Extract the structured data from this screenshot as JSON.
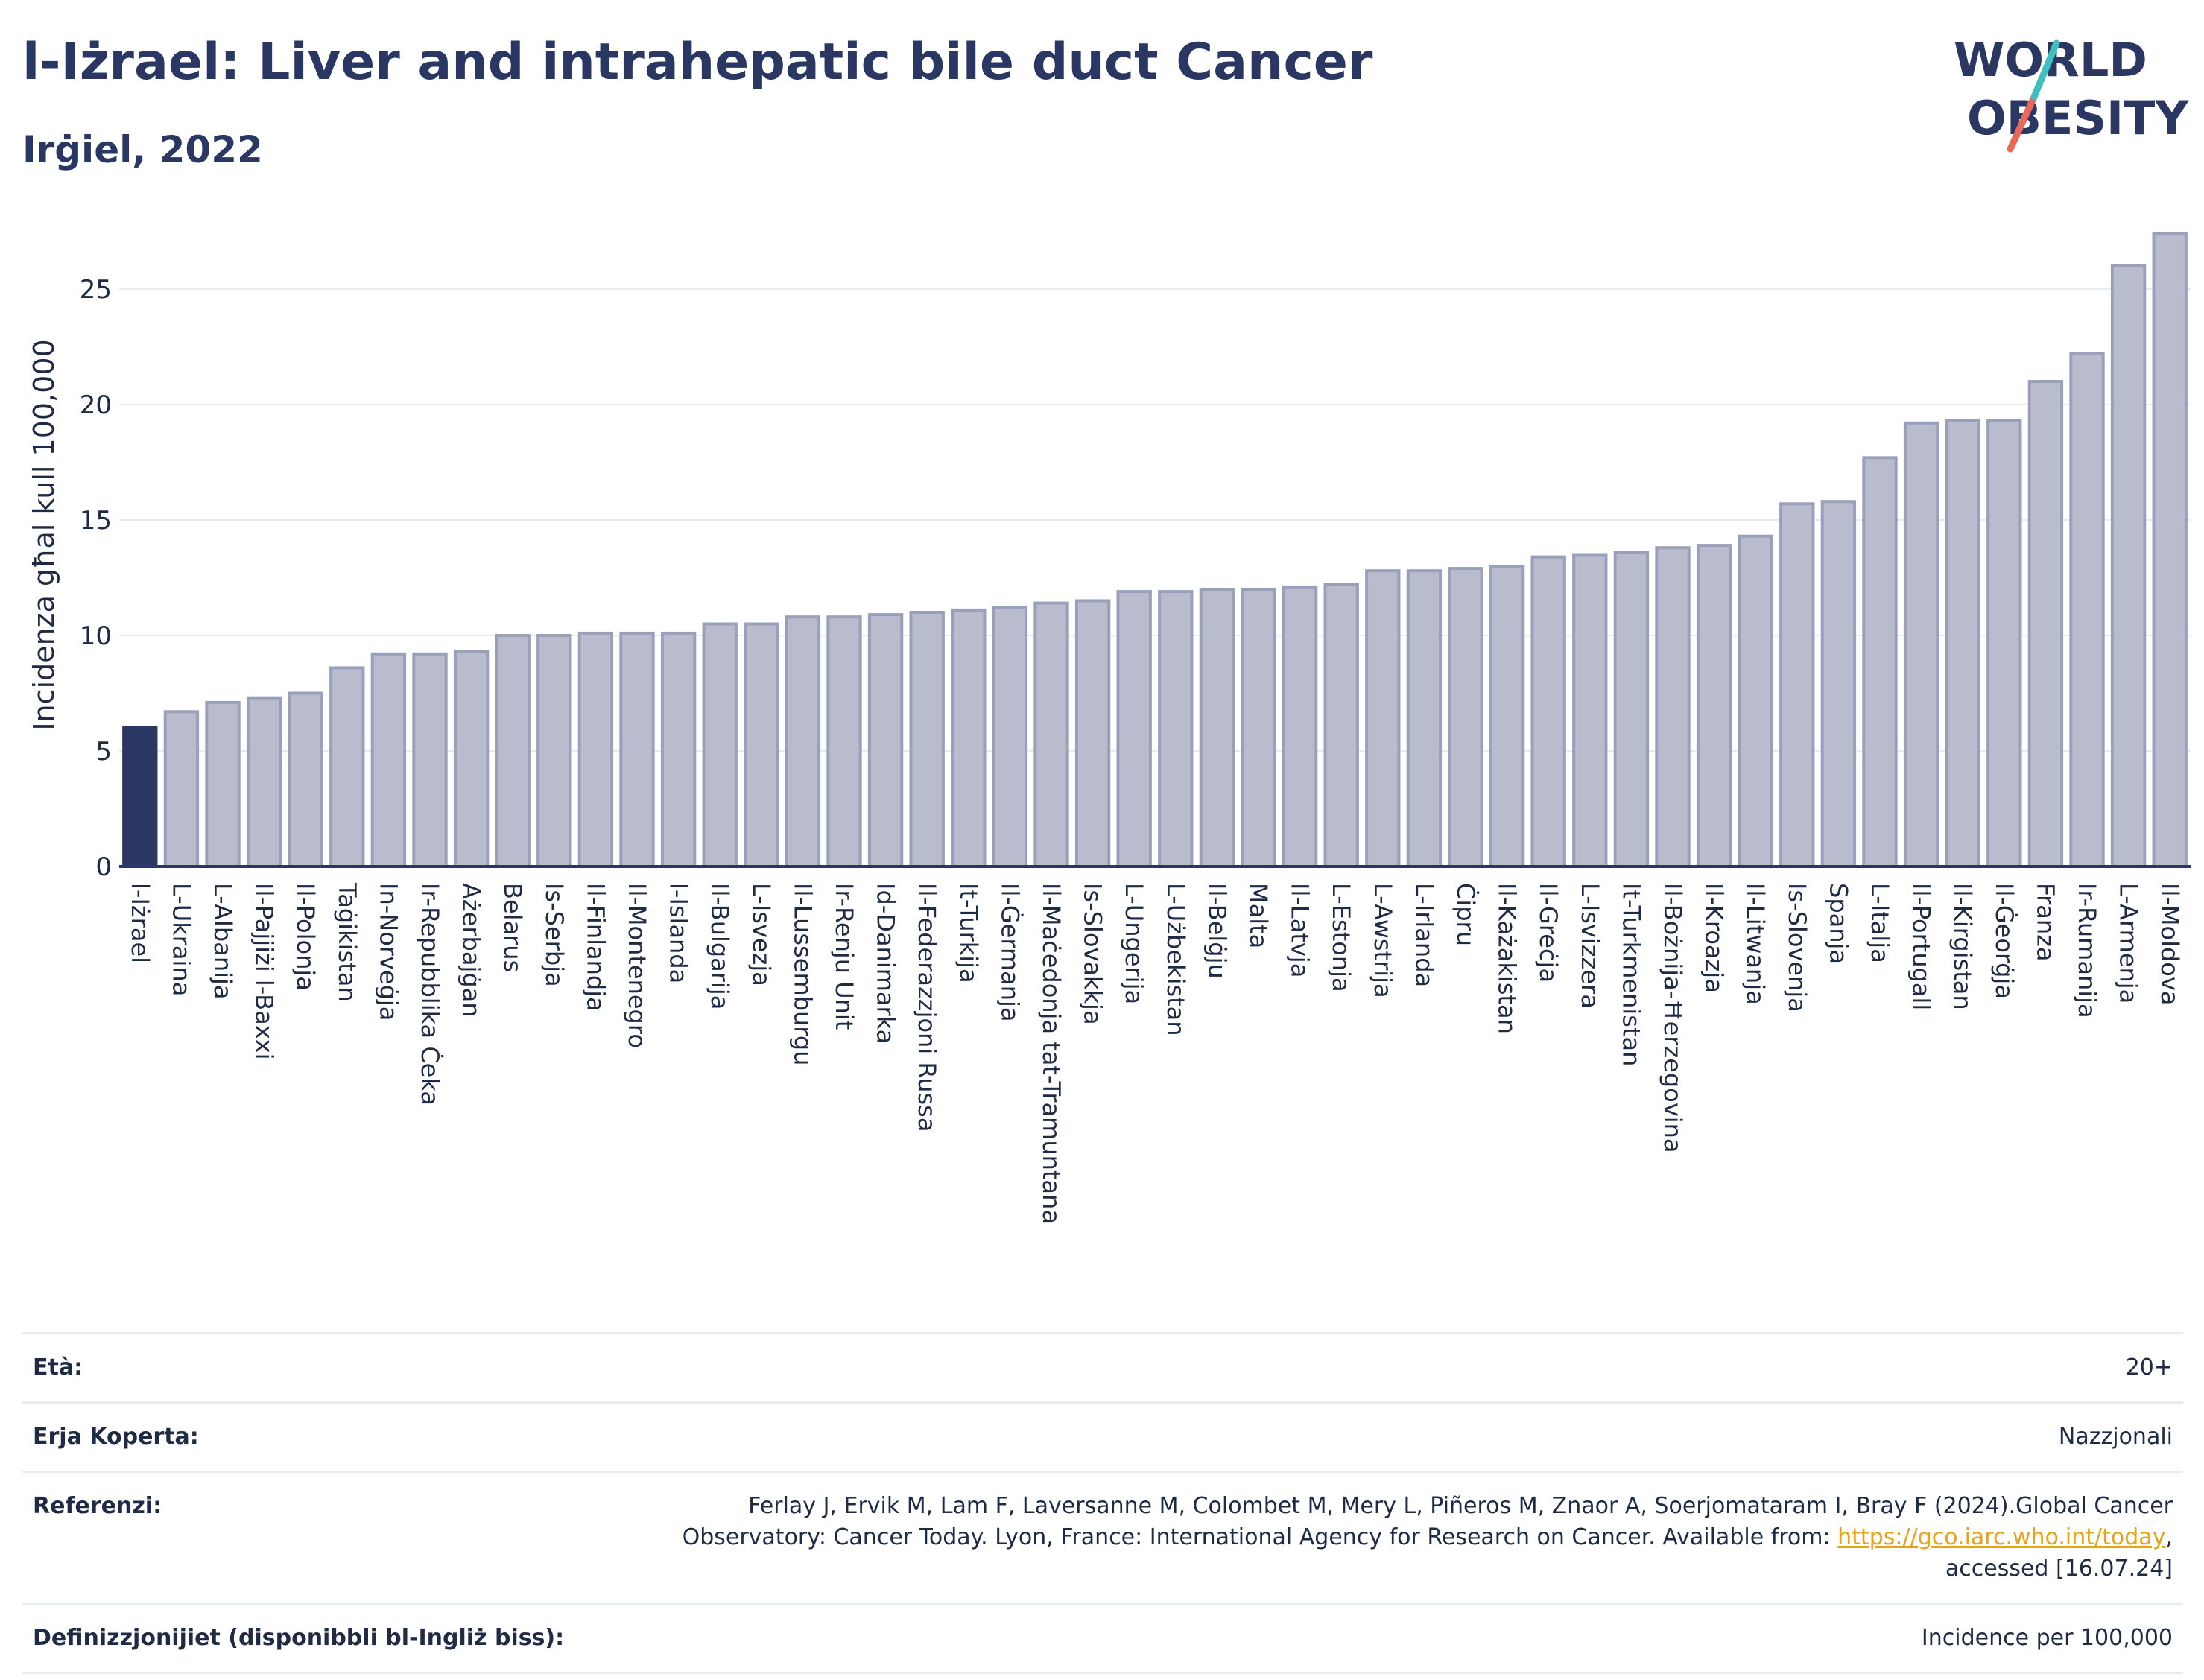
{
  "header": {
    "title": "l-Iżrael: Liver and intrahepatic bile duct Cancer",
    "subtitle": "Irġiel, 2022"
  },
  "logo": {
    "line1": "WORLD",
    "line2": "OBESITY",
    "colors": {
      "text": "#2b3763",
      "slash_teal": "#3fbfbf",
      "slash_red": "#e8685a"
    }
  },
  "colors": {
    "highlight_bar": "#2b3763",
    "bar": "#b9bccd",
    "bar_stroke": "#9aa0bb",
    "axis": "#2b3763",
    "grid": "#e6ebf1"
  },
  "chart_data": {
    "type": "bar",
    "title": "l-Iżrael: Liver and intrahepatic bile duct Cancer",
    "subtitle": "Irġiel, 2022",
    "ylabel": "Incidenza għal kull 100,000",
    "xlabel": "",
    "ylim": [
      0,
      28
    ],
    "yticks": [
      0,
      5,
      10,
      15,
      20,
      25
    ],
    "grid": true,
    "highlight": "l-Iżrael",
    "categories": [
      "l-Iżrael",
      "L-Ukraina",
      "L-Albanija",
      "Il-Pajjiżi l-Baxxi",
      "Il-Polonja",
      "Taġikistan",
      "In-Norveġja",
      "Ir-Repubblika Ċeka",
      "Ażerbajġan",
      "Belarus",
      "Is-Serbja",
      "Il-Finlandja",
      "Il-Montenegro",
      "l-Islanda",
      "Il-Bulgarija",
      "L-Isvezja",
      "Il-Lussemburgu",
      "Ir-Renju Unit",
      "Id-Danimarka",
      "Il-Federazzjoni Russa",
      "It-Turkija",
      "Il-Ġermanja",
      "Il-Maċedonja tat-Tramuntana",
      "Is-Slovakkja",
      "L-Ungerija",
      "L-Użbekistan",
      "Il-Belġju",
      "Malta",
      "Il-Latvja",
      "L-Estonja",
      "L-Awstrija",
      "L-Irlanda",
      "Ċipru",
      "Il-Każakistan",
      "Il-Greċja",
      "L-Isvizzera",
      "It-Turkmenistan",
      "Il-Bożnija-Ħerzegovina",
      "Il-Kroazja",
      "Il-Litwanja",
      "Is-Slovenja",
      "Spanja",
      "L-Italja",
      "Il-Portugall",
      "Il-Kirgistan",
      "Il-Ġeorġja",
      "Franza",
      "Ir-Rumanija",
      "L-Armenja",
      "Il-Moldova"
    ],
    "values": [
      6.0,
      6.7,
      7.1,
      7.3,
      7.5,
      8.6,
      9.2,
      9.2,
      9.3,
      10.0,
      10.0,
      10.1,
      10.1,
      10.1,
      10.5,
      10.5,
      10.8,
      10.8,
      10.9,
      11.0,
      11.1,
      11.2,
      11.4,
      11.5,
      11.9,
      11.9,
      12.0,
      12.0,
      12.1,
      12.2,
      12.8,
      12.8,
      12.9,
      13.0,
      13.4,
      13.5,
      13.6,
      13.8,
      13.9,
      14.3,
      15.7,
      15.8,
      17.7,
      19.2,
      19.3,
      19.3,
      21.0,
      22.2,
      26.0,
      27.4
    ]
  },
  "info": {
    "rows": [
      {
        "label": "Età:",
        "value": "20+"
      },
      {
        "label": "Erja Koperta:",
        "value": "Nazzjonali"
      },
      {
        "label": "Referenzi:",
        "value_line1": "Ferlay J, Ervik M, Lam F, Laversanne M, Colombet M, Mery L, Piñeros M, Znaor A, Soerjomataram I, Bray F (2024).Global Cancer",
        "value_line2a": "Observatory: Cancer Today. Lyon, France: International Agency for Research on Cancer. Available from: ",
        "link": "https://gco.iarc.who.int/today",
        "value_line2b": ",",
        "value_line3": "accessed [16.07.24]"
      },
      {
        "label": "Definizzjonijiet (disponibbli bl-Ingliż biss):",
        "value": "Incidence per 100,000"
      }
    ]
  }
}
